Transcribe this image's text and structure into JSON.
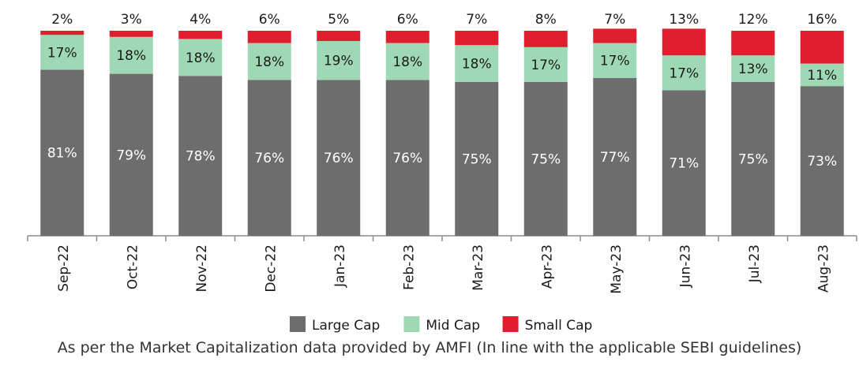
{
  "chart_data": {
    "type": "bar",
    "stacked": true,
    "percent": true,
    "categories": [
      "Sep-22",
      "Oct-22",
      "Nov-22",
      "Dec-22",
      "Jan-23",
      "Feb-23",
      "Mar-23",
      "Apr-23",
      "May-23",
      "Jun-23",
      "Jul-23",
      "Aug-23"
    ],
    "series": [
      {
        "name": "Large Cap",
        "color": "#6d6d6d",
        "values": [
          81,
          79,
          78,
          76,
          76,
          76,
          75,
          75,
          77,
          71,
          75,
          73
        ]
      },
      {
        "name": "Mid Cap",
        "color": "#9fd8b5",
        "values": [
          17,
          18,
          18,
          18,
          19,
          18,
          18,
          17,
          17,
          17,
          13,
          11
        ]
      },
      {
        "name": "Small Cap",
        "color": "#e01e2e",
        "values": [
          2,
          3,
          4,
          6,
          5,
          6,
          7,
          8,
          7,
          13,
          12,
          16
        ]
      }
    ],
    "ylim": [
      0,
      100
    ],
    "grid": false,
    "legend_position": "bottom",
    "unit_suffix": "%"
  },
  "footnote": "As per the Market Capitalization data provided by AMFI (In line with the applicable SEBI guidelines)"
}
